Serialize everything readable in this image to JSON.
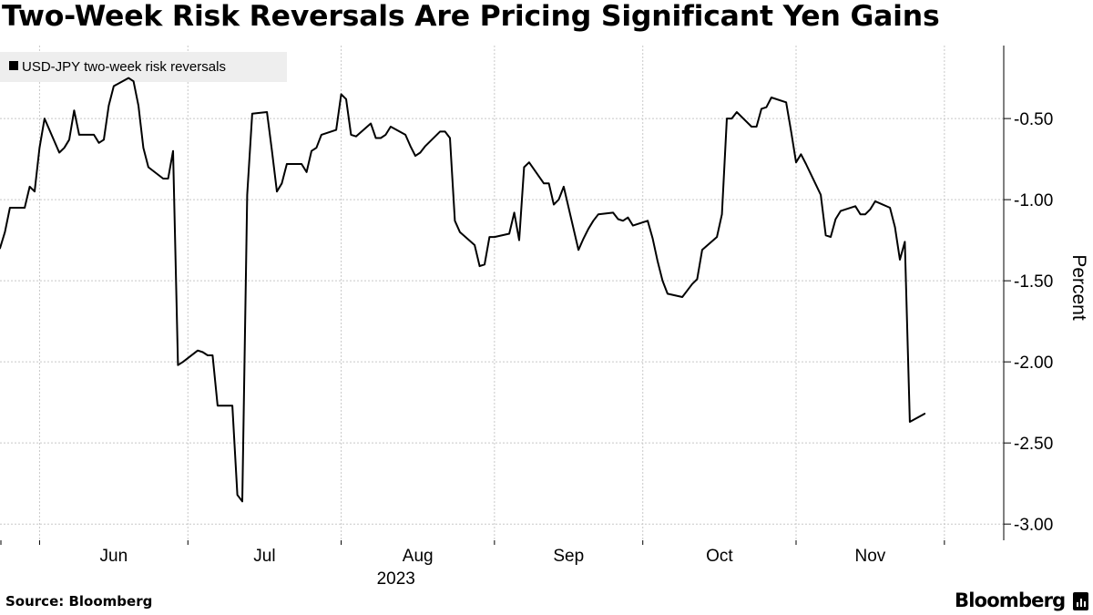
{
  "header": {
    "title": "Two-Week Risk Reversals Are Pricing Significant Yen Gains"
  },
  "footer": {
    "source": "Source: Bloomberg",
    "brand": "Bloomberg"
  },
  "colors": {
    "line": "#000000",
    "grid": "#c8c8c8",
    "legend_bg": "#eeeeee",
    "background": "#ffffff"
  },
  "chart_data": {
    "type": "line",
    "title": "Two-Week Risk Reversals Are Pricing Significant Yen Gains",
    "ylabel": "Percent",
    "xlabel": "",
    "year_label": "2023",
    "ylim": [
      -3.1,
      -0.05
    ],
    "yticks": [
      -0.5,
      -1.0,
      -1.5,
      -2.0,
      -2.5,
      -3.0
    ],
    "ytick_labels": [
      "-0.50",
      "-1.00",
      "-1.50",
      "-2.00",
      "-2.50",
      "-3.00"
    ],
    "xlim": [
      "2023-05-24",
      "2023-12-13"
    ],
    "x_month_ticks": [
      "2023-06-01",
      "2023-07-01",
      "2023-08-01",
      "2023-09-01",
      "2023-10-01",
      "2023-11-01",
      "2023-12-01"
    ],
    "x_month_labels": [
      "Jun",
      "Jul",
      "Aug",
      "Sep",
      "Oct",
      "Nov",
      ""
    ],
    "grid": true,
    "legend_position": "top-left",
    "series": [
      {
        "name": "USD-JPY two-week risk reversals",
        "points": [
          [
            "2023-05-24",
            -1.3
          ],
          [
            "2023-05-25",
            -1.2
          ],
          [
            "2023-05-26",
            -1.05
          ],
          [
            "2023-05-29",
            -1.05
          ],
          [
            "2023-05-30",
            -0.92
          ],
          [
            "2023-05-31",
            -0.95
          ],
          [
            "2023-06-01",
            -0.68
          ],
          [
            "2023-06-02",
            -0.5
          ],
          [
            "2023-06-05",
            -0.71
          ],
          [
            "2023-06-06",
            -0.68
          ],
          [
            "2023-06-07",
            -0.63
          ],
          [
            "2023-06-08",
            -0.45
          ],
          [
            "2023-06-09",
            -0.6
          ],
          [
            "2023-06-12",
            -0.6
          ],
          [
            "2023-06-13",
            -0.65
          ],
          [
            "2023-06-14",
            -0.63
          ],
          [
            "2023-06-15",
            -0.42
          ],
          [
            "2023-06-16",
            -0.3
          ],
          [
            "2023-06-19",
            -0.25
          ],
          [
            "2023-06-20",
            -0.27
          ],
          [
            "2023-06-21",
            -0.42
          ],
          [
            "2023-06-22",
            -0.68
          ],
          [
            "2023-06-23",
            -0.8
          ],
          [
            "2023-06-26",
            -0.87
          ],
          [
            "2023-06-27",
            -0.87
          ],
          [
            "2023-06-28",
            -0.7
          ],
          [
            "2023-06-29",
            -2.02
          ],
          [
            "2023-06-30",
            -2.0
          ],
          [
            "2023-07-03",
            -1.93
          ],
          [
            "2023-07-04",
            -1.94
          ],
          [
            "2023-07-05",
            -1.96
          ],
          [
            "2023-07-06",
            -1.96
          ],
          [
            "2023-07-07",
            -2.27
          ],
          [
            "2023-07-10",
            -2.27
          ],
          [
            "2023-07-11",
            -2.82
          ],
          [
            "2023-07-12",
            -2.86
          ],
          [
            "2023-07-13",
            -0.97
          ],
          [
            "2023-07-14",
            -0.47
          ],
          [
            "2023-07-17",
            -0.46
          ],
          [
            "2023-07-18",
            -0.7
          ],
          [
            "2023-07-19",
            -0.95
          ],
          [
            "2023-07-20",
            -0.9
          ],
          [
            "2023-07-21",
            -0.78
          ],
          [
            "2023-07-24",
            -0.78
          ],
          [
            "2023-07-25",
            -0.83
          ],
          [
            "2023-07-26",
            -0.7
          ],
          [
            "2023-07-27",
            -0.68
          ],
          [
            "2023-07-28",
            -0.6
          ],
          [
            "2023-07-31",
            -0.57
          ],
          [
            "2023-08-01",
            -0.35
          ],
          [
            "2023-08-02",
            -0.38
          ],
          [
            "2023-08-03",
            -0.6
          ],
          [
            "2023-08-04",
            -0.61
          ],
          [
            "2023-08-07",
            -0.53
          ],
          [
            "2023-08-08",
            -0.62
          ],
          [
            "2023-08-09",
            -0.62
          ],
          [
            "2023-08-10",
            -0.6
          ],
          [
            "2023-08-11",
            -0.55
          ],
          [
            "2023-08-14",
            -0.6
          ],
          [
            "2023-08-15",
            -0.67
          ],
          [
            "2023-08-16",
            -0.73
          ],
          [
            "2023-08-17",
            -0.71
          ],
          [
            "2023-08-18",
            -0.67
          ],
          [
            "2023-08-21",
            -0.58
          ],
          [
            "2023-08-22",
            -0.58
          ],
          [
            "2023-08-23",
            -0.62
          ],
          [
            "2023-08-24",
            -1.13
          ],
          [
            "2023-08-25",
            -1.2
          ],
          [
            "2023-08-28",
            -1.28
          ],
          [
            "2023-08-29",
            -1.41
          ],
          [
            "2023-08-30",
            -1.4
          ],
          [
            "2023-08-31",
            -1.23
          ],
          [
            "2023-09-01",
            -1.23
          ],
          [
            "2023-09-04",
            -1.21
          ],
          [
            "2023-09-05",
            -1.08
          ],
          [
            "2023-09-06",
            -1.25
          ],
          [
            "2023-09-07",
            -0.8
          ],
          [
            "2023-09-08",
            -0.77
          ],
          [
            "2023-09-11",
            -0.9
          ],
          [
            "2023-09-12",
            -0.9
          ],
          [
            "2023-09-13",
            -1.03
          ],
          [
            "2023-09-14",
            -1.0
          ],
          [
            "2023-09-15",
            -0.92
          ],
          [
            "2023-09-18",
            -1.31
          ],
          [
            "2023-09-19",
            -1.24
          ],
          [
            "2023-09-20",
            -1.18
          ],
          [
            "2023-09-21",
            -1.13
          ],
          [
            "2023-09-22",
            -1.09
          ],
          [
            "2023-09-25",
            -1.08
          ],
          [
            "2023-09-26",
            -1.12
          ],
          [
            "2023-09-27",
            -1.13
          ],
          [
            "2023-09-28",
            -1.11
          ],
          [
            "2023-09-29",
            -1.16
          ],
          [
            "2023-10-02",
            -1.13
          ],
          [
            "2023-10-03",
            -1.24
          ],
          [
            "2023-10-04",
            -1.38
          ],
          [
            "2023-10-05",
            -1.5
          ],
          [
            "2023-10-06",
            -1.58
          ],
          [
            "2023-10-09",
            -1.6
          ],
          [
            "2023-10-10",
            -1.56
          ],
          [
            "2023-10-11",
            -1.52
          ],
          [
            "2023-10-12",
            -1.49
          ],
          [
            "2023-10-13",
            -1.31
          ],
          [
            "2023-10-16",
            -1.23
          ],
          [
            "2023-10-17",
            -1.09
          ],
          [
            "2023-10-18",
            -0.5
          ],
          [
            "2023-10-19",
            -0.5
          ],
          [
            "2023-10-20",
            -0.46
          ],
          [
            "2023-10-23",
            -0.55
          ],
          [
            "2023-10-24",
            -0.55
          ],
          [
            "2023-10-25",
            -0.44
          ],
          [
            "2023-10-26",
            -0.43
          ],
          [
            "2023-10-27",
            -0.37
          ],
          [
            "2023-10-30",
            -0.4
          ],
          [
            "2023-10-31",
            -0.58
          ],
          [
            "2023-11-01",
            -0.77
          ],
          [
            "2023-11-02",
            -0.72
          ],
          [
            "2023-11-03",
            -0.78
          ],
          [
            "2023-11-06",
            -0.97
          ],
          [
            "2023-11-07",
            -1.22
          ],
          [
            "2023-11-08",
            -1.23
          ],
          [
            "2023-11-09",
            -1.12
          ],
          [
            "2023-11-10",
            -1.07
          ],
          [
            "2023-11-13",
            -1.04
          ],
          [
            "2023-11-14",
            -1.09
          ],
          [
            "2023-11-15",
            -1.09
          ],
          [
            "2023-11-16",
            -1.06
          ],
          [
            "2023-11-17",
            -1.01
          ],
          [
            "2023-11-20",
            -1.05
          ],
          [
            "2023-11-21",
            -1.17
          ],
          [
            "2023-11-22",
            -1.37
          ],
          [
            "2023-11-23",
            -1.26
          ],
          [
            "2023-11-24",
            -2.37
          ],
          [
            "2023-11-27",
            -2.32
          ]
        ]
      }
    ]
  }
}
